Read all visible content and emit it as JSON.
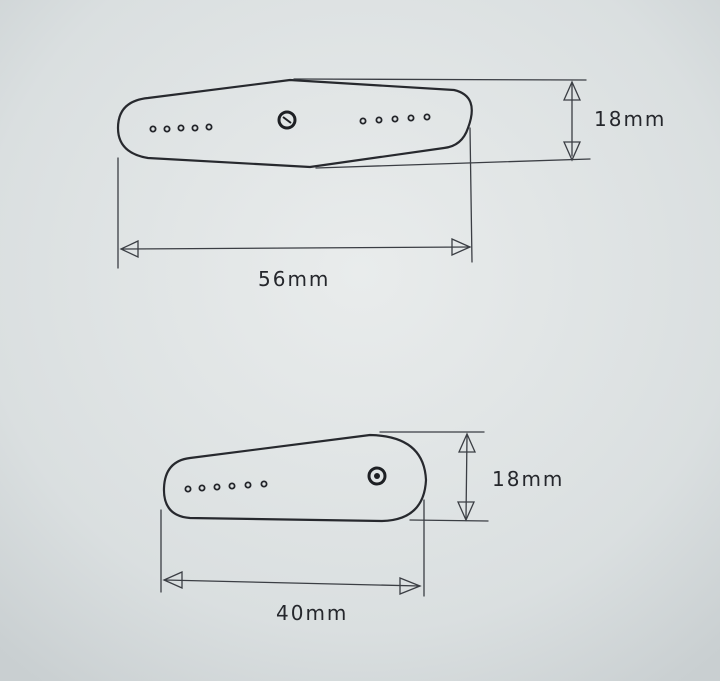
{
  "colors": {
    "paper": "#dfe3e4",
    "ink": "#27292e"
  },
  "top_horn": {
    "length_label": "56mm",
    "height_label": "18mm",
    "holes_per_side": 5
  },
  "bottom_horn": {
    "length_label": "40mm",
    "height_label": "18mm",
    "hole_count": 6
  }
}
